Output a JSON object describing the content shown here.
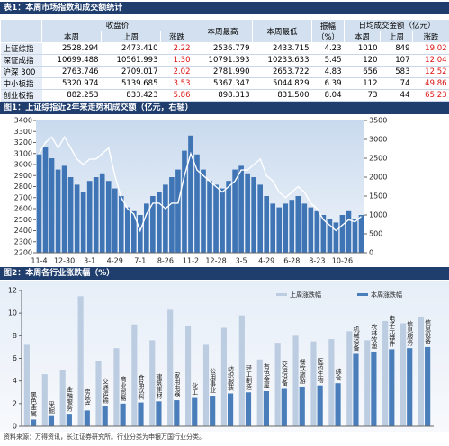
{
  "table": {
    "title": "表1：本周市场指数和成交额统计",
    "columns": {
      "close": "收盘价",
      "high": "本周最高",
      "low": "本周最低",
      "amplitude": "振幅\n（%）",
      "turnover": "日均成交金额（亿元）",
      "sub": [
        "本周",
        "上周",
        "涨跌",
        "本周",
        "上周",
        "涨跌"
      ]
    },
    "rows": [
      [
        "上证综指",
        "2528.294",
        "2473.410",
        "2.22",
        "2536.779",
        "2433.715",
        "4.23",
        "1010",
        "849",
        "19.02"
      ],
      [
        "深证成指",
        "10699.488",
        "10561.993",
        "1.30",
        "10791.393",
        "10233.633",
        "5.45",
        "120",
        "107",
        "12.04"
      ],
      [
        "沪深 300",
        "2763.746",
        "2709.017",
        "2.02",
        "2781.990",
        "2653.722",
        "4.83",
        "656",
        "583",
        "12.52"
      ],
      [
        "中小板指",
        "5320.974",
        "5139.685",
        "3.53",
        "5367.347",
        "5044.829",
        "6.39",
        "112",
        "74",
        "49.86"
      ],
      [
        "创业板指",
        "882.253",
        "833.423",
        "5.86",
        "898.313",
        "831.500",
        "8.04",
        "73",
        "44",
        "65.23"
      ]
    ]
  },
  "chart_data": [
    {
      "type": "combo",
      "title": "图1：上证综指近2年来走势和成交额（亿元，右轴）",
      "categories": [
        "11-4",
        null,
        null,
        null,
        "12-30",
        null,
        null,
        null,
        "3-1",
        null,
        null,
        null,
        "4-29",
        null,
        null,
        null,
        "7-1",
        null,
        null,
        null,
        "8-26",
        null,
        null,
        null,
        "11-2",
        null,
        null,
        null,
        "12-28",
        null,
        null,
        null,
        "3-5",
        null,
        null,
        null,
        "4-29",
        null,
        null,
        null,
        "6-28",
        null,
        null,
        null,
        "8-23",
        null,
        null,
        null,
        "10-26",
        null,
        null,
        null
      ],
      "series": [
        {
          "type": "bar",
          "axis": "y2",
          "color": "#3f74b5",
          "values": [
            2600,
            2800,
            2500,
            2200,
            2300,
            2000,
            1800,
            1600,
            1900,
            2000,
            2100,
            1900,
            1700,
            1500,
            1200,
            1100,
            1000,
            1300,
            1500,
            1600,
            1800,
            2000,
            2200,
            2700,
            3100,
            2600,
            2200,
            1900,
            1800,
            1700,
            1900,
            2200,
            2300,
            2100,
            2000,
            1800,
            1500,
            1300,
            1200,
            1300,
            1400,
            1500,
            1300,
            1200,
            1100,
            1000,
            900,
            800,
            1000,
            1100,
            900,
            1000
          ]
        },
        {
          "type": "line",
          "color": "#ffffff",
          "values": [
            3100,
            3200,
            3250,
            3150,
            3250,
            3150,
            3050,
            3000,
            3050,
            3050,
            3100,
            3150,
            2900,
            2700,
            2600,
            2550,
            2400,
            2550,
            2650,
            2650,
            2600,
            2650,
            2650,
            2900,
            3100,
            2950,
            2900,
            2850,
            2800,
            2750,
            2800,
            2850,
            2950,
            2950,
            3000,
            3050,
            2900,
            2850,
            2750,
            2700,
            2750,
            2800,
            2750,
            2650,
            2600,
            2500,
            2450,
            2400,
            2450,
            2500,
            2480,
            2530
          ]
        }
      ],
      "ylim": [
        2200,
        3400
      ],
      "yticks": [
        2200,
        2300,
        2400,
        2500,
        2600,
        2700,
        2800,
        2900,
        3000,
        3100,
        3200,
        3300,
        3400
      ],
      "y2lim": [
        0,
        3500
      ],
      "y2ticks": [
        0,
        500,
        1000,
        1500,
        2000,
        2500,
        3000,
        3500
      ]
    },
    {
      "type": "bar",
      "title": "图2：本周各行业涨跌幅（%）",
      "categories": [
        "黑色金属",
        "采掘",
        "金融服务",
        "房地产",
        "交通运输",
        "商业贸易",
        "食品饮料",
        "建筑建材",
        "家用电器",
        "化工",
        "公用事业",
        "纺织服装",
        "轻工制造",
        "有色金属",
        "交运设备",
        "餐饮旅游",
        "医药生物",
        "综合",
        "机械设备",
        "农林牧渔",
        "电子元器件",
        "信息服务",
        "信息设备"
      ],
      "series": [
        {
          "name": "上周涨跌幅",
          "color": "#bccde2",
          "values": [
            7.2,
            4.6,
            5.0,
            11.5,
            5.8,
            6.9,
            9.0,
            7.6,
            10.3,
            8.9,
            7.2,
            8.7,
            9.8,
            5.9,
            7.3,
            8.0,
            7.5,
            7.7,
            8.4,
            7.6,
            9.3,
            9.1,
            9.7
          ]
        },
        {
          "name": "本周涨跌幅",
          "color": "#4a7ebb",
          "values": [
            0.6,
            0.9,
            1.1,
            1.4,
            1.8,
            2.0,
            2.1,
            2.2,
            2.3,
            2.5,
            2.7,
            2.9,
            3.0,
            3.1,
            3.3,
            3.5,
            3.6,
            3.8,
            6.4,
            6.6,
            6.8,
            6.9,
            7.0
          ]
        }
      ],
      "ylim": [
        0,
        12
      ],
      "yticks": [
        0,
        2,
        4,
        6,
        8,
        10,
        12
      ],
      "legend": "top-right"
    }
  ],
  "source": "资料来源：万得资讯，长江证券研究所。行业分类为申银万国行业分类。"
}
